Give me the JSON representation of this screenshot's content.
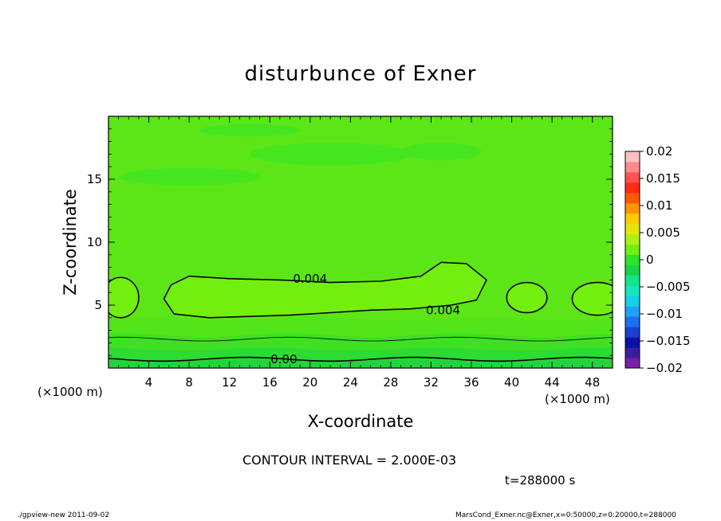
{
  "title": "disturbunce of Exner",
  "contour_interval": "CONTOUR INTERVAL = 2.000E-03",
  "time_label": "t=288000 s",
  "footer_left": "./gpview-new   2011-09-02",
  "footer_right": "MarsCond_Exner.nc@Exner,x=0:50000,z=0:20000,t=288000",
  "chart_data": {
    "type": "heatmap",
    "title": "disturbunce of Exner",
    "xlabel": "X-coordinate",
    "ylabel": "Z-coordinate",
    "x_unit": "(×1000 m)",
    "z_unit": "(×1000 m)",
    "xlim": [
      0,
      50
    ],
    "ylim": [
      0,
      20
    ],
    "x_ticks": [
      4,
      8,
      12,
      16,
      20,
      24,
      28,
      32,
      36,
      40,
      44,
      48
    ],
    "y_ticks": [
      5,
      10,
      15
    ],
    "colorbar": {
      "ticks": [
        "0.02",
        "0.015",
        "0.01",
        "0.005",
        "0",
        "−0.005",
        "−0.01",
        "−0.015",
        "−0.02"
      ],
      "range": [
        -0.02,
        0.02
      ],
      "colors": [
        "#7a1fa8",
        "#3a1d9e",
        "#0d12a6",
        "#1d3fd4",
        "#1f6ff2",
        "#1fa2f4",
        "#17d1e6",
        "#15e6bd",
        "#13e38c",
        "#18d44a",
        "#2fe329",
        "#74ef14",
        "#b0f014",
        "#e2e60e",
        "#ffcc00",
        "#ff9600",
        "#ff5a00",
        "#ff2a18",
        "#ff5252",
        "#ff8a8a",
        "#ffc0c0"
      ]
    },
    "contour_labels": [
      "0.004",
      "0.004",
      "0.00"
    ],
    "contour_interval": 0.002
  },
  "colors": {
    "background_field": "#5ce618",
    "mid_field": "#73ef0f",
    "top_patch": "#45e61f",
    "low_band_1": "#53e41a",
    "low_band_2": "#3fe023",
    "low_band_3": "#2ddb32",
    "low_band_4": "#22d43c"
  }
}
